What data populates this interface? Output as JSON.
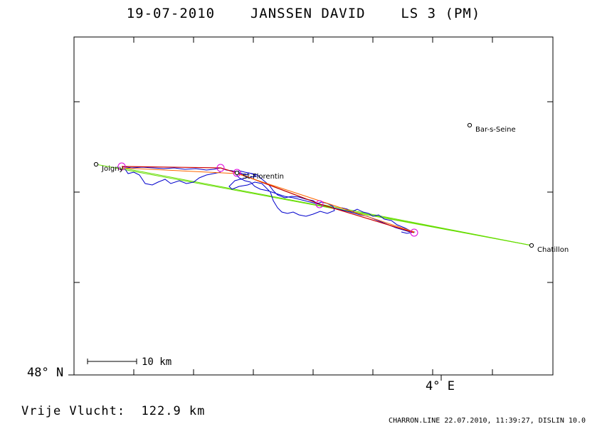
{
  "title": "19-07-2010    JANSSEN DAVID    LS 3 (PM)",
  "footer": {
    "flight": "Vrije Vlucht:  122.9 km",
    "credit": "CHARRON.LINE 22.07.2010, 11:39:27, DISLIN 10.0"
  },
  "chart_data": {
    "type": "map",
    "xlabel": "4° E",
    "ylabel": "48° N",
    "scale_bar": "10 km",
    "towns": [
      {
        "name": "Joigny"
      },
      {
        "name": "St-Florentin"
      },
      {
        "name": "Bar-s-Seine"
      },
      {
        "name": "Chatillon"
      }
    ],
    "colors": {
      "track": "#0000cc",
      "route": "#cc0000",
      "task": "#66dd00",
      "turnpoint": "#dd00dd",
      "frame": "#000000"
    }
  }
}
